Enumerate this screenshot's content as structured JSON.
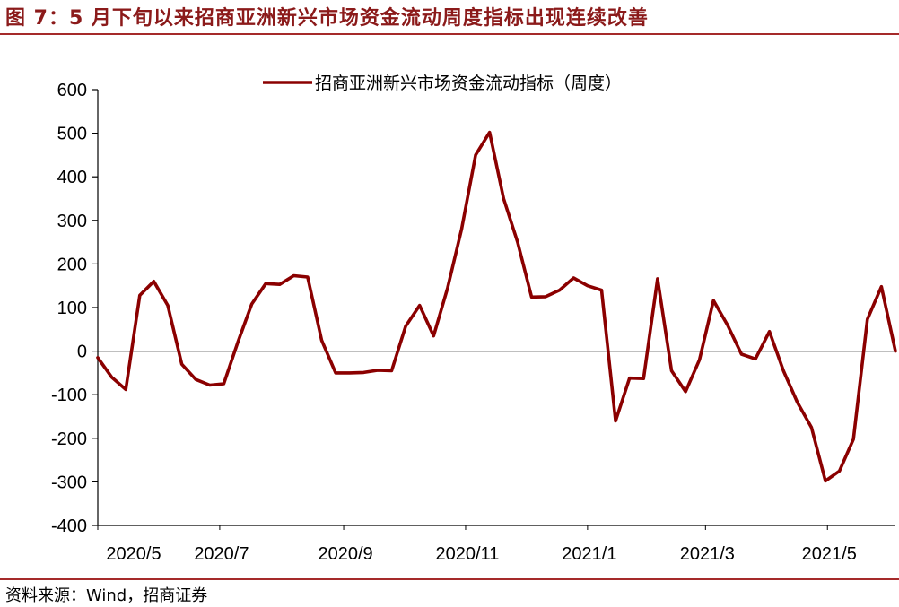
{
  "figure": {
    "title": "图 7：5 月下旬以来招商亚洲新兴市场资金流动周度指标出现连续改善",
    "source": "资料来源：Wind，招商证券"
  },
  "colors": {
    "series": "#8B0000",
    "rule": "#A52A2A",
    "title": "#8B1A1A"
  },
  "chart_data": {
    "type": "line",
    "title": "",
    "xlabel": "",
    "ylabel": "",
    "ylim": [
      -400,
      600
    ],
    "yticks": [
      600,
      500,
      400,
      300,
      200,
      100,
      0,
      -100,
      -200,
      -300,
      -400
    ],
    "xtick_labels": [
      "2020/5",
      "2020/7",
      "2020/9",
      "2020/11",
      "2021/1",
      "2021/3",
      "2021/5"
    ],
    "legend": {
      "position": "top",
      "entries": [
        "招商亚洲新兴市场资金流动指标（周度）"
      ]
    },
    "grid": false,
    "series": [
      {
        "name": "招商亚洲新兴市场资金流动指标（周度）",
        "x": [
          "2020-05-01",
          "2020-05-08",
          "2020-05-15",
          "2020-05-22",
          "2020-05-29",
          "2020-06-05",
          "2020-06-12",
          "2020-06-19",
          "2020-06-26",
          "2020-07-03",
          "2020-07-10",
          "2020-07-17",
          "2020-07-24",
          "2020-07-31",
          "2020-08-07",
          "2020-08-14",
          "2020-08-21",
          "2020-08-28",
          "2020-09-04",
          "2020-09-11",
          "2020-09-18",
          "2020-09-25",
          "2020-10-02",
          "2020-10-09",
          "2020-10-16",
          "2020-10-23",
          "2020-10-30",
          "2020-11-06",
          "2020-11-13",
          "2020-11-20",
          "2020-11-27",
          "2020-12-04",
          "2020-12-11",
          "2020-12-18",
          "2020-12-25",
          "2021-01-01",
          "2021-01-08",
          "2021-01-15",
          "2021-01-22",
          "2021-01-29",
          "2021-02-05",
          "2021-02-12",
          "2021-02-19",
          "2021-02-26",
          "2021-03-05",
          "2021-03-12",
          "2021-03-19",
          "2021-03-26",
          "2021-04-02",
          "2021-04-09",
          "2021-04-16",
          "2021-04-23",
          "2021-04-30",
          "2021-05-07",
          "2021-05-14",
          "2021-05-21",
          "2021-05-28",
          "2021-06-04"
        ],
        "values": [
          -15,
          -60,
          -88,
          128,
          160,
          105,
          -30,
          -65,
          -78,
          -75,
          20,
          108,
          155,
          153,
          173,
          170,
          25,
          -50,
          -50,
          -49,
          -44,
          -45,
          57,
          105,
          35,
          145,
          280,
          450,
          502,
          350,
          250,
          124,
          125,
          140,
          168,
          150,
          140,
          -160,
          -62,
          -63,
          166,
          -45,
          -93,
          -20,
          116,
          60,
          -7,
          -18,
          45,
          -45,
          -118,
          -175,
          -298,
          -275,
          -202,
          73,
          148,
          0
        ]
      }
    ]
  }
}
